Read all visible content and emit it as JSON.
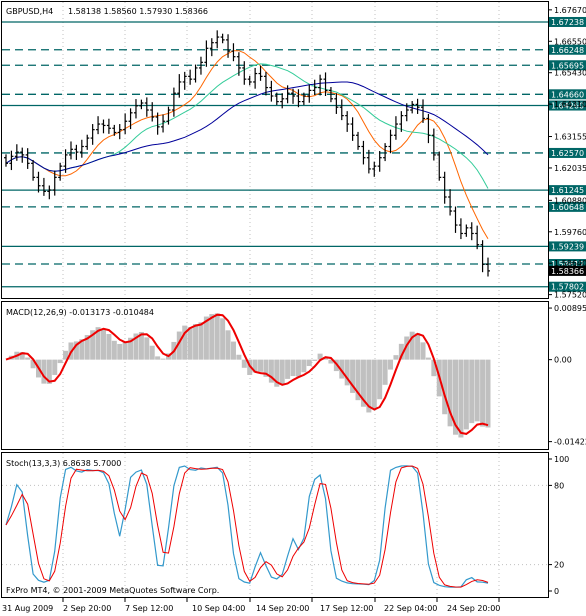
{
  "price_chart": {
    "symbol": "GBPUSD,H4",
    "ohlc": "1.58138 1.58560 1.57930 1.58366",
    "y_axis_ticks": [
      "1.67670",
      "1.66550",
      "1.65430",
      "1.64310",
      "1.63155",
      "1.62035",
      "1.60880",
      "1.59760",
      "1.58640",
      "1.57520"
    ],
    "level_labels": [
      "1.67238",
      "1.66248",
      "1.65695",
      "1.64660",
      "1.64260",
      "1.62570",
      "1.61245",
      "1.60648",
      "1.59239",
      "1.58612",
      "1.58366",
      "1.57802"
    ],
    "current_price": "1.58366"
  },
  "macd_panel": {
    "title": "MACD(12,26,9) -0.013173 -0.010484",
    "y_axis_ticks": [
      "0.00895",
      "0.00",
      "-0.01422"
    ]
  },
  "stoch_panel": {
    "title": "Stoch(13,3,3) 6.8638 5.7000",
    "y_axis_ticks": [
      "100",
      "80",
      "20",
      "0"
    ],
    "footer": "FxPro MT4, © 2001-2009 MetaQuotes Software Corp."
  },
  "time_axis": [
    "31 Aug 2009",
    "2 Sep 20:00",
    "7 Sep 12:00",
    "10 Sep 04:00",
    "14 Sep 20:00",
    "17 Sep 12:00",
    "22 Sep 04:00",
    "24 Sep 20:00"
  ],
  "chart_data": {
    "type": "line",
    "close": [
      1.622,
      1.6245,
      1.626,
      1.625,
      1.622,
      1.617,
      1.614,
      1.612,
      1.6125,
      1.617,
      1.621,
      1.625,
      1.627,
      1.626,
      1.628,
      1.631,
      1.634,
      1.636,
      1.6355,
      1.6345,
      1.633,
      1.634,
      1.637,
      1.64,
      1.6425,
      1.6435,
      1.641,
      1.6385,
      1.635,
      1.637,
      1.641,
      1.647,
      1.651,
      1.653,
      1.652,
      1.656,
      1.658,
      1.663,
      1.665,
      1.667,
      1.666,
      1.662,
      1.66,
      1.656,
      1.652,
      1.651,
      1.654,
      1.653,
      1.649,
      1.646,
      1.644,
      1.645,
      1.647,
      1.646,
      1.644,
      1.646,
      1.648,
      1.649,
      1.652,
      1.648,
      1.645,
      1.642,
      1.639,
      1.636,
      1.632,
      1.628,
      1.624,
      1.62,
      1.621,
      1.624,
      1.628,
      1.632,
      1.636,
      1.639,
      1.641,
      1.643,
      1.642,
      1.638,
      1.632,
      1.625,
      1.617,
      1.61,
      1.605,
      1.6,
      1.597,
      1.599,
      1.597,
      1.593,
      1.586,
      1.58366
    ]
  }
}
